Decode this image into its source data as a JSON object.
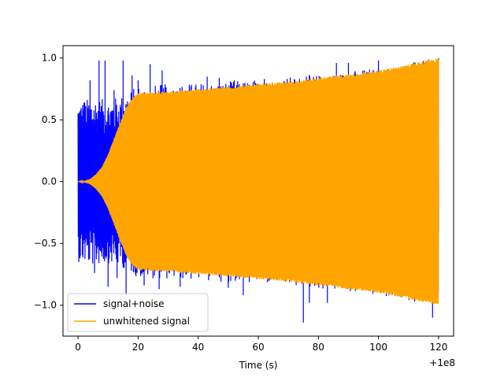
{
  "chart_data": {
    "type": "line",
    "title": "",
    "xlabel": "Time (s)",
    "ylabel": "",
    "x_offset_label": "+1e8",
    "xlim": [
      -5,
      125
    ],
    "ylim": [
      -1.25,
      1.1
    ],
    "x_ticks": [
      {
        "value": 0,
        "label": "0"
      },
      {
        "value": 20,
        "label": "20"
      },
      {
        "value": 40,
        "label": "40"
      },
      {
        "value": 60,
        "label": "60"
      },
      {
        "value": 80,
        "label": "80"
      },
      {
        "value": 100,
        "label": "100"
      },
      {
        "value": 120,
        "label": "120"
      }
    ],
    "y_ticks": [
      {
        "value": 1.0,
        "label": "1.0"
      },
      {
        "value": 0.5,
        "label": "0.5"
      },
      {
        "value": 0.0,
        "label": "0.0"
      },
      {
        "value": -0.5,
        "label": "−0.5"
      },
      {
        "value": -1.0,
        "label": "−1.0"
      }
    ],
    "grid": false,
    "legend_position": "lower-left",
    "series": [
      {
        "name": "signal+noise",
        "color": "#0000ff",
        "description": "band-limited noise plus chirp, values within about [-1.14, 1.0]",
        "envelope_upper": [
          [
            0,
            0.65
          ],
          [
            5,
            0.68
          ],
          [
            10,
            0.66
          ],
          [
            15,
            0.7
          ],
          [
            20,
            0.78
          ],
          [
            40,
            0.8
          ],
          [
            60,
            0.83
          ],
          [
            80,
            0.87
          ],
          [
            100,
            0.93
          ],
          [
            120,
            1.0
          ]
        ],
        "spikes": [
          [
            2,
            0.64
          ],
          [
            4,
            0.82
          ],
          [
            5.5,
            -0.74
          ],
          [
            7,
            0.98
          ],
          [
            9,
            0.98
          ],
          [
            10,
            -0.85
          ],
          [
            12,
            0.74
          ],
          [
            13,
            -0.78
          ],
          [
            15,
            0.98
          ],
          [
            16,
            -0.92
          ],
          [
            18,
            0.86
          ],
          [
            20,
            0.82
          ],
          [
            22,
            -0.84
          ],
          [
            24,
            0.95
          ],
          [
            27,
            -0.87
          ],
          [
            28,
            0.9
          ],
          [
            34,
            -0.85
          ],
          [
            43,
            0.85
          ],
          [
            47,
            0.84
          ],
          [
            50,
            -0.86
          ],
          [
            52,
            0.82
          ],
          [
            55,
            -0.92
          ],
          [
            62,
            0.83
          ],
          [
            75,
            -1.14
          ],
          [
            76,
            0.85
          ],
          [
            77,
            -0.98
          ],
          [
            83,
            -0.98
          ],
          [
            86,
            0.96
          ],
          [
            90,
            0.96
          ],
          [
            100,
            0.98
          ],
          [
            118,
            -1.1
          ],
          [
            120,
            1.0
          ]
        ]
      },
      {
        "name": "unwhitened signal",
        "color": "#ffa500",
        "description": "chirp with amplitude rising near t=0..20 then slowly increasing",
        "envelope_upper": [
          [
            0,
            0.0
          ],
          [
            2,
            0.005
          ],
          [
            4,
            0.02
          ],
          [
            6,
            0.06
          ],
          [
            8,
            0.12
          ],
          [
            10,
            0.22
          ],
          [
            12,
            0.35
          ],
          [
            14,
            0.48
          ],
          [
            16,
            0.6
          ],
          [
            18,
            0.68
          ],
          [
            20,
            0.72
          ],
          [
            30,
            0.73
          ],
          [
            40,
            0.75
          ],
          [
            50,
            0.77
          ],
          [
            60,
            0.79
          ],
          [
            70,
            0.81
          ],
          [
            80,
            0.84
          ],
          [
            90,
            0.87
          ],
          [
            100,
            0.9
          ],
          [
            110,
            0.95
          ],
          [
            120,
            1.0
          ]
        ]
      }
    ]
  }
}
